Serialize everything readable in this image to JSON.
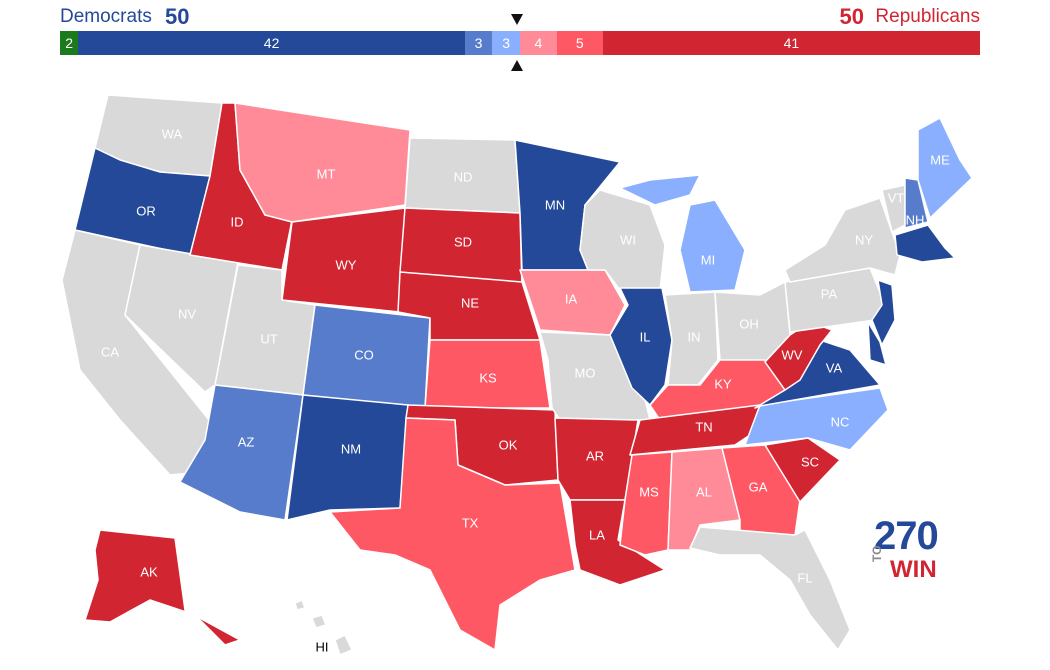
{
  "header": {
    "dem_label": "Democrats",
    "dem_count": "50",
    "rep_count": "50",
    "rep_label": "Republicans"
  },
  "bar": [
    {
      "label": "2",
      "value": 2,
      "color": "#1b7a1b"
    },
    {
      "label": "42",
      "value": 42,
      "color": "#244999"
    },
    {
      "label": "3",
      "value": 3,
      "color": "#577ccc"
    },
    {
      "label": "3",
      "value": 3,
      "color": "#8aafff"
    },
    {
      "label": "4",
      "value": 4,
      "color": "#ff8b98"
    },
    {
      "label": "5",
      "value": 5,
      "color": "#ff5865"
    },
    {
      "label": "41",
      "value": 41,
      "color": "#d22532"
    }
  ],
  "colors": {
    "safe_dem": "#244999",
    "likely_dem": "#577ccc",
    "lean_dem": "#8aafff",
    "lean_rep": "#ff8b98",
    "likely_rep": "#ff5865",
    "safe_rep": "#d22532",
    "no_race": "#d9d9d9",
    "independent": "#1b7a1b"
  },
  "states": {
    "WA": "no_race",
    "OR": "safe_dem",
    "CA": "no_race",
    "NV": "no_race",
    "ID": "safe_rep",
    "MT": "lean_rep",
    "WY": "safe_rep",
    "UT": "no_race",
    "AZ": "likely_dem",
    "CO": "likely_dem",
    "NM": "safe_dem",
    "ND": "no_race",
    "SD": "safe_rep",
    "NE": "safe_rep",
    "KS": "likely_rep",
    "OK": "safe_rep",
    "TX": "likely_rep",
    "MN": "safe_dem",
    "IA": "lean_rep",
    "MO": "no_race",
    "AR": "safe_rep",
    "LA": "safe_rep",
    "WI": "no_race",
    "IL": "safe_dem",
    "MI": "lean_dem",
    "IN": "no_race",
    "OH": "no_race",
    "KY": "likely_rep",
    "TN": "safe_rep",
    "MS": "likely_rep",
    "AL": "lean_rep",
    "GA": "likely_rep",
    "FL": "no_race",
    "SC": "safe_rep",
    "NC": "lean_dem",
    "VA": "safe_dem",
    "WV": "safe_rep",
    "PA": "no_race",
    "NY": "no_race",
    "VT": "no_race",
    "NH": "likely_dem",
    "ME": "lean_dem",
    "MA": "safe_dem",
    "NJ": "safe_dem",
    "DE": "safe_dem",
    "AK": "safe_rep",
    "HI": "no_race"
  },
  "state_labels": {
    "WA": "WA",
    "OR": "OR",
    "CA": "CA",
    "NV": "NV",
    "ID": "ID",
    "MT": "MT",
    "WY": "WY",
    "UT": "UT",
    "AZ": "AZ",
    "CO": "CO",
    "NM": "NM",
    "ND": "ND",
    "SD": "SD",
    "NE": "NE",
    "KS": "KS",
    "OK": "OK",
    "TX": "TX",
    "MN": "MN",
    "IA": "IA",
    "MO": "MO",
    "AR": "AR",
    "LA": "LA",
    "WI": "WI",
    "IL": "IL",
    "MI": "MI",
    "IN": "IN",
    "OH": "OH",
    "KY": "KY",
    "TN": "TN",
    "MS": "MS",
    "AL": "AL",
    "GA": "GA",
    "FL": "FL",
    "SC": "SC",
    "NC": "NC",
    "VA": "VA",
    "WV": "WV",
    "PA": "PA",
    "NY": "NY",
    "VT": "VT",
    "NH": "NH",
    "ME": "ME",
    "AK": "AK",
    "HI": "HI"
  },
  "logo": {
    "number": "270",
    "to": "TO",
    "win": "WIN"
  }
}
